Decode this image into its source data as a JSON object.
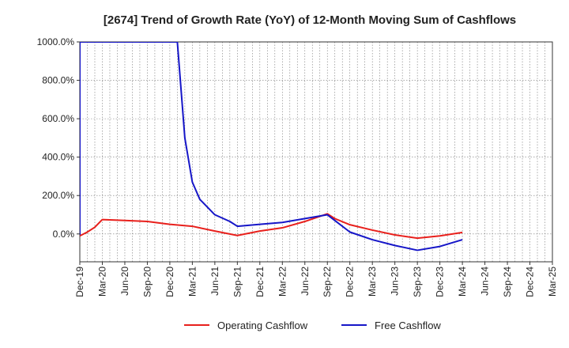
{
  "chart_data": {
    "type": "line",
    "title": "[2674]  Trend of Growth Rate (YoY) of 12-Month Moving Sum of Cashflows",
    "xlabel": "",
    "ylabel": "",
    "ylim": [
      -145,
      1000
    ],
    "y_ticks": [
      "0.0%",
      "200.0%",
      "400.0%",
      "600.0%",
      "800.0%",
      "1000.0%"
    ],
    "y_tick_values": [
      0,
      200,
      400,
      600,
      800,
      1000
    ],
    "x_tick_labels": [
      "Dec-19",
      "Mar-20",
      "Jun-20",
      "Sep-20",
      "Dec-20",
      "Mar-21",
      "Jun-21",
      "Sep-21",
      "Dec-21",
      "Mar-22",
      "Jun-22",
      "Sep-22",
      "Dec-22",
      "Mar-23",
      "Jun-23",
      "Sep-23",
      "Dec-23",
      "Mar-24",
      "Jun-24",
      "Sep-24",
      "Dec-24",
      "Mar-25"
    ],
    "x_months": [
      "Dec-19",
      "Jan-20",
      "Feb-20",
      "Mar-20",
      "Apr-20",
      "May-20",
      "Jun-20",
      "Jul-20",
      "Aug-20",
      "Sep-20",
      "Oct-20",
      "Nov-20",
      "Dec-20",
      "Jan-21",
      "Feb-21",
      "Mar-21",
      "Apr-21",
      "May-21",
      "Jun-21",
      "Jul-21",
      "Aug-21",
      "Sep-21",
      "Oct-21",
      "Nov-21",
      "Dec-21",
      "Jan-22",
      "Feb-22",
      "Mar-22",
      "Apr-22",
      "May-22",
      "Jun-22",
      "Jul-22",
      "Aug-22",
      "Sep-22",
      "Oct-22",
      "Nov-22",
      "Dec-22",
      "Jan-23",
      "Feb-23",
      "Mar-23",
      "Apr-23",
      "May-23",
      "Jun-23",
      "Jul-23",
      "Aug-23",
      "Sep-23",
      "Oct-23",
      "Nov-23",
      "Dec-23",
      "Jan-24",
      "Feb-24",
      "Mar-24",
      "Apr-24",
      "May-24",
      "Jun-24",
      "Jul-24",
      "Aug-24",
      "Sep-24",
      "Oct-24",
      "Nov-24",
      "Dec-24",
      "Jan-25",
      "Feb-25",
      "Mar-25"
    ],
    "grid": true,
    "legend_position": "bottom",
    "series": [
      {
        "name": "Operating Cashflow",
        "color": "#e8201c",
        "points": [
          [
            "Dec-19",
            -10
          ],
          [
            "Jan-20",
            10
          ],
          [
            "Feb-20",
            35
          ],
          [
            "Mar-20",
            75
          ],
          [
            "Jun-20",
            70
          ],
          [
            "Sep-20",
            65
          ],
          [
            "Dec-20",
            50
          ],
          [
            "Mar-21",
            40
          ],
          [
            "Jun-21",
            15
          ],
          [
            "Sep-21",
            -8
          ],
          [
            "Dec-21",
            15
          ],
          [
            "Mar-22",
            32
          ],
          [
            "Jun-22",
            65
          ],
          [
            "Sep-22",
            105
          ],
          [
            "Oct-22",
            80
          ],
          [
            "Dec-22",
            48
          ],
          [
            "Mar-23",
            20
          ],
          [
            "Jun-23",
            -5
          ],
          [
            "Sep-23",
            -22
          ],
          [
            "Dec-23",
            -10
          ],
          [
            "Mar-24",
            8
          ]
        ]
      },
      {
        "name": "Free Cashflow",
        "color": "#1616c8",
        "points": [
          [
            "Dec-19",
            -5
          ],
          [
            "Dec-19",
            1000
          ],
          [
            "Jan-20",
            1000
          ],
          [
            "Jan-21",
            1000
          ],
          [
            "Feb-21",
            500
          ],
          [
            "Mar-21",
            270
          ],
          [
            "Apr-21",
            180
          ],
          [
            "May-21",
            140
          ],
          [
            "Jun-21",
            100
          ],
          [
            "Aug-21",
            65
          ],
          [
            "Sep-21",
            40
          ],
          [
            "Dec-21",
            50
          ],
          [
            "Mar-22",
            60
          ],
          [
            "Jun-22",
            80
          ],
          [
            "Sep-22",
            100
          ],
          [
            "Oct-22",
            70
          ],
          [
            "Dec-22",
            10
          ],
          [
            "Mar-23",
            -30
          ],
          [
            "Jun-23",
            -60
          ],
          [
            "Sep-23",
            -85
          ],
          [
            "Dec-23",
            -65
          ],
          [
            "Mar-24",
            -30
          ]
        ]
      }
    ]
  }
}
